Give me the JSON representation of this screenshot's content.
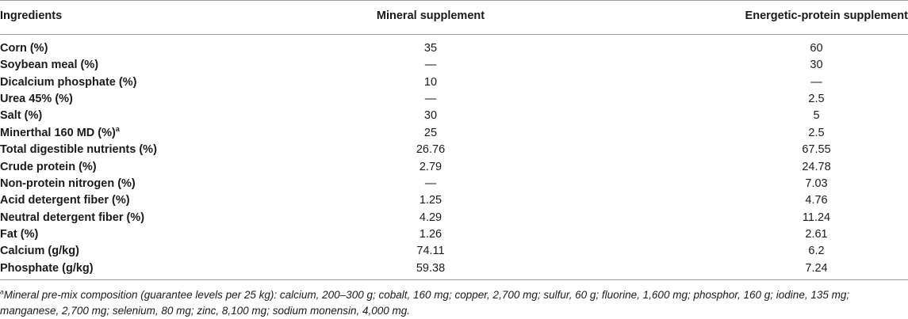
{
  "table": {
    "headers": [
      "Ingredients",
      "Mineral supplement",
      "Energetic-protein supplement"
    ],
    "rows": [
      {
        "label": "Corn (%)",
        "sup": "",
        "mineral": "35",
        "energetic": "60"
      },
      {
        "label": "Soybean meal (%)",
        "sup": "",
        "mineral": "—",
        "energetic": "30"
      },
      {
        "label": "Dicalcium phosphate (%)",
        "sup": "",
        "mineral": "10",
        "energetic": "—"
      },
      {
        "label": "Urea 45% (%)",
        "sup": "",
        "mineral": "—",
        "energetic": "2.5"
      },
      {
        "label": "Salt (%)",
        "sup": "",
        "mineral": "30",
        "energetic": "5"
      },
      {
        "label": "Minerthal 160 MD (%)",
        "sup": "a",
        "mineral": "25",
        "energetic": "2.5"
      },
      {
        "label": "Total digestible nutrients (%)",
        "sup": "",
        "mineral": "26.76",
        "energetic": "67.55"
      },
      {
        "label": "Crude protein (%)",
        "sup": "",
        "mineral": "2.79",
        "energetic": "24.78"
      },
      {
        "label": "Non-protein nitrogen (%)",
        "sup": "",
        "mineral": "—",
        "energetic": "7.03"
      },
      {
        "label": "Acid detergent fiber (%)",
        "sup": "",
        "mineral": "1.25",
        "energetic": "4.76"
      },
      {
        "label": "Neutral detergent fiber (%)",
        "sup": "",
        "mineral": "4.29",
        "energetic": "11.24"
      },
      {
        "label": "Fat (%)",
        "sup": "",
        "mineral": "1.26",
        "energetic": "2.61"
      },
      {
        "label": "Calcium (g/kg)",
        "sup": "",
        "mineral": "74.11",
        "energetic": "6.2"
      },
      {
        "label": "Phosphate (g/kg)",
        "sup": "",
        "mineral": "59.38",
        "energetic": "7.24"
      }
    ]
  },
  "footnote": {
    "marker": "a",
    "text": "Mineral pre-mix composition (guarantee levels per 25 kg): calcium, 200–300 g; cobalt, 160 mg; copper, 2,700 mg; sulfur, 60 g; fluorine, 1,600 mg; phosphor, 160 g; iodine, 135 mg; manganese, 2,700 mg; selenium, 80 mg; zinc, 8,100 mg; sodium monensin, 4,000 mg."
  }
}
